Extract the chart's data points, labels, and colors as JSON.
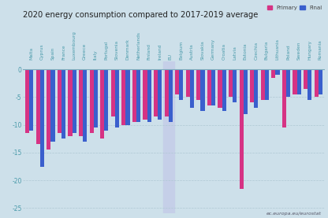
{
  "title": "2020 energy consumption compared to 2017-2019 average",
  "categories": [
    "Malta",
    "Cyprus",
    "Spain",
    "France",
    "Luxembourg",
    "Greece",
    "Italy",
    "Portugal",
    "Slovenia",
    "Denmark",
    "Netherlands",
    "Finland",
    "Ireland",
    "EU",
    "Belgium",
    "Austria",
    "Slovakia",
    "Germany",
    "Croatia",
    "Latvia",
    "Estonia",
    "Czechia",
    "Bulgaria",
    "Lithuania",
    "Poland",
    "Sweden",
    "Hungary",
    "Romania"
  ],
  "primary": [
    -11.5,
    -13.5,
    -14.5,
    -11.5,
    -12.0,
    -12.0,
    -11.5,
    -12.5,
    -8.5,
    -10.0,
    -9.5,
    -9.0,
    -8.5,
    -8.5,
    -4.5,
    -5.0,
    -5.5,
    -6.5,
    -7.0,
    -5.0,
    -21.5,
    -6.0,
    -5.5,
    -1.5,
    -10.5,
    -4.5,
    -3.5,
    -5.0
  ],
  "final": [
    -11.0,
    -17.5,
    -13.0,
    -12.5,
    -11.5,
    -13.0,
    -10.5,
    -11.0,
    -10.5,
    -10.0,
    -9.5,
    -9.5,
    -9.0,
    -9.5,
    -5.5,
    -7.0,
    -7.5,
    -6.5,
    -7.5,
    -6.0,
    -8.0,
    -7.0,
    -5.5,
    -1.0,
    -5.0,
    -4.5,
    -5.5,
    -4.5
  ],
  "primary_color": "#d63384",
  "final_color": "#3a5fcd",
  "eu_highlight_color": "#c5cfe8",
  "background_color": "#cde0ea",
  "grid_color": "#b0c8d4",
  "ylim": [
    -26,
    1.5
  ],
  "yticks": [
    0,
    -5,
    -10,
    -15,
    -20,
    -25
  ],
  "watermark": "ec.europa.eu/eurostat",
  "legend_primary": "Primary",
  "legend_final": "Final"
}
